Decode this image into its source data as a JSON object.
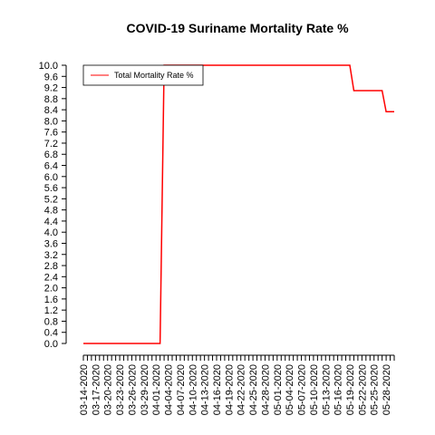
{
  "chart_data": {
    "type": "line",
    "title": "COVID-19 Suriname Mortality Rate %",
    "xlabel": "",
    "ylabel": "",
    "ylim": [
      0,
      10
    ],
    "y_ticks": [
      "0.0",
      "0.4",
      "0.8",
      "1.2",
      "1.6",
      "2.0",
      "2.4",
      "2.8",
      "3.2",
      "3.6",
      "4.0",
      "4.4",
      "4.8",
      "5.2",
      "5.6",
      "6.0",
      "6.4",
      "6.8",
      "7.2",
      "7.6",
      "8.0",
      "8.4",
      "8.8",
      "9.2",
      "9.6",
      "10.0"
    ],
    "x_tick_labels": [
      "03-14-2020",
      "03-17-2020",
      "03-20-2020",
      "03-23-2020",
      "03-26-2020",
      "03-29-2020",
      "04-01-2020",
      "04-04-2020",
      "04-07-2020",
      "04-10-2020",
      "04-13-2020",
      "04-16-2020",
      "04-19-2020",
      "04-22-2020",
      "04-25-2020",
      "04-28-2020",
      "05-01-2020",
      "05-04-2020",
      "05-07-2020",
      "05-10-2020",
      "05-13-2020",
      "05-16-2020",
      "05-19-2020",
      "05-22-2020",
      "05-25-2020",
      "05-28-2020"
    ],
    "legend_position": "top-left",
    "x": [
      "03-14-2020",
      "03-15-2020",
      "03-16-2020",
      "03-17-2020",
      "03-18-2020",
      "03-19-2020",
      "03-20-2020",
      "03-21-2020",
      "03-22-2020",
      "03-23-2020",
      "03-24-2020",
      "03-25-2020",
      "03-26-2020",
      "03-27-2020",
      "03-28-2020",
      "03-29-2020",
      "03-30-2020",
      "03-31-2020",
      "04-01-2020",
      "04-02-2020",
      "04-03-2020",
      "04-04-2020",
      "04-05-2020",
      "04-06-2020",
      "04-07-2020",
      "04-08-2020",
      "04-09-2020",
      "04-10-2020",
      "04-11-2020",
      "04-12-2020",
      "04-13-2020",
      "04-14-2020",
      "04-15-2020",
      "04-16-2020",
      "04-17-2020",
      "04-18-2020",
      "04-19-2020",
      "04-20-2020",
      "04-21-2020",
      "04-22-2020",
      "04-23-2020",
      "04-24-2020",
      "04-25-2020",
      "04-26-2020",
      "04-27-2020",
      "04-28-2020",
      "04-29-2020",
      "04-30-2020",
      "05-01-2020",
      "05-02-2020",
      "05-03-2020",
      "05-04-2020",
      "05-05-2020",
      "05-06-2020",
      "05-07-2020",
      "05-08-2020",
      "05-09-2020",
      "05-10-2020",
      "05-11-2020",
      "05-12-2020",
      "05-13-2020",
      "05-14-2020",
      "05-15-2020",
      "05-16-2020",
      "05-17-2020",
      "05-18-2020",
      "05-19-2020",
      "05-20-2020",
      "05-21-2020",
      "05-22-2020",
      "05-23-2020",
      "05-24-2020",
      "05-25-2020",
      "05-26-2020",
      "05-27-2020",
      "05-28-2020",
      "05-29-2020",
      "05-30-2020"
    ],
    "series": [
      {
        "name": "Total Mortality Rate %",
        "color": "#ff0000",
        "values": [
          0,
          0,
          0,
          0,
          0,
          0,
          0,
          0,
          0,
          0,
          0,
          0,
          0,
          0,
          0,
          0,
          0,
          0,
          0,
          0,
          10,
          10,
          10,
          10,
          10,
          10,
          10,
          10,
          10,
          10,
          10,
          10,
          10,
          10,
          10,
          10,
          10,
          10,
          10,
          10,
          10,
          10,
          10,
          10,
          10,
          10,
          10,
          10,
          10,
          10,
          10,
          10,
          10,
          10,
          10,
          10,
          10,
          10,
          10,
          10,
          10,
          10,
          10,
          10,
          10,
          10,
          10,
          9.09,
          9.09,
          9.09,
          9.09,
          9.09,
          9.09,
          9.09,
          9.09,
          8.33,
          8.33,
          8.33
        ]
      }
    ]
  }
}
